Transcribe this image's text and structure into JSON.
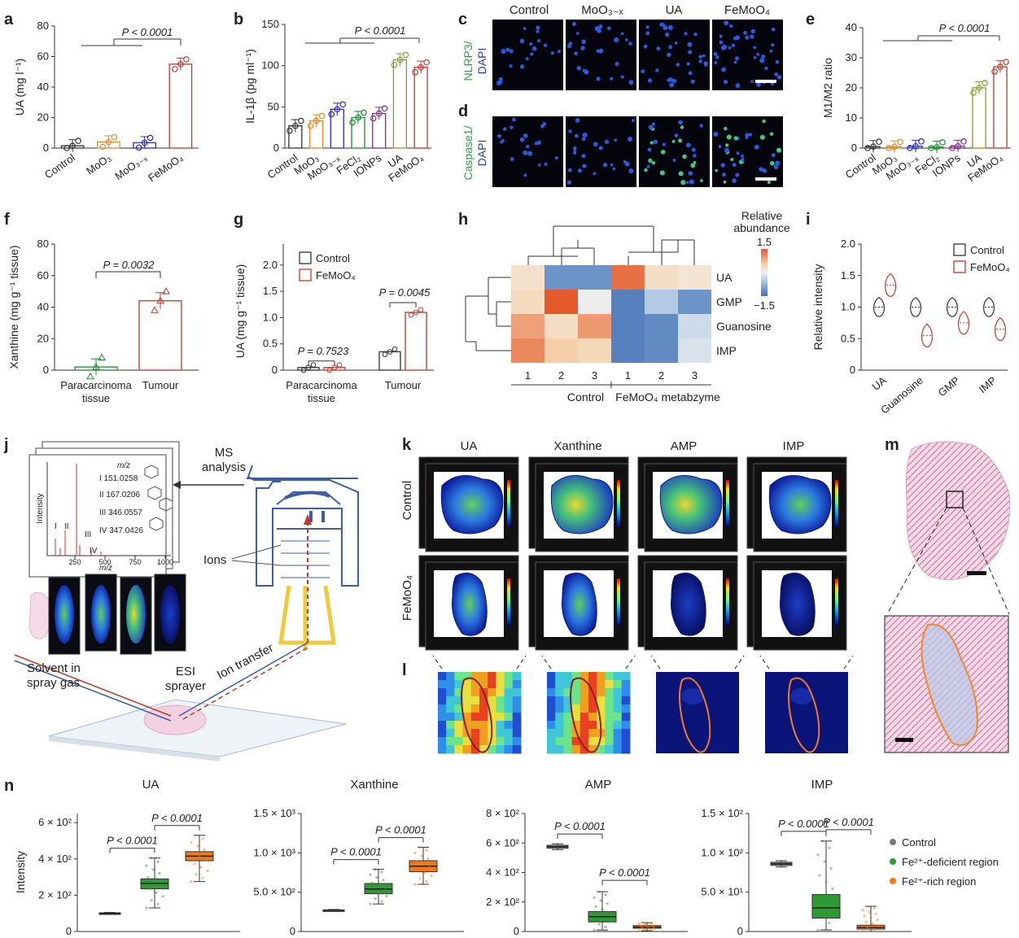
{
  "panels": {
    "a": {
      "letter": "a",
      "ylabel": "UA (mg l⁻¹)",
      "yticks": [
        "0",
        "20",
        "40",
        "60",
        "80"
      ],
      "ylim": [
        0,
        80
      ],
      "categories": [
        "Control",
        "MoO₃",
        "MoO₃₋ₓ",
        "FeMoO₄"
      ],
      "values": [
        1.5,
        4,
        3.5,
        55
      ],
      "colors": [
        "#333333",
        "#e08a2c",
        "#2b2bc9",
        "#c0392b"
      ],
      "sig": "P < 0.0001"
    },
    "b": {
      "letter": "b",
      "ylabel": "IL-1β (pg ml⁻¹)",
      "yticks": [
        "0",
        "50",
        "100",
        "150"
      ],
      "ylim": [
        0,
        150
      ],
      "categories": [
        "Control",
        "MoO₃",
        "MoO₃₋ₓ",
        "FeCl₂",
        "IONPs",
        "UA",
        "FeMoO₄"
      ],
      "values": [
        27,
        33,
        47,
        37,
        42,
        107,
        98
      ],
      "colors": [
        "#333333",
        "#e08a2c",
        "#2b2bc9",
        "#1e8c2e",
        "#7d2d8c",
        "#8a9b2a",
        "#c0392b"
      ],
      "sig": "P < 0.0001"
    },
    "c": {
      "letter": "c",
      "rowlabel_a": "NLRP3/",
      "rowlabel_b": "DAPI",
      "headers": [
        "Control",
        "MoO₃₋ₓ",
        "UA",
        "FeMoO₄"
      ]
    },
    "d": {
      "letter": "d",
      "rowlabel_a": "Caspase1/",
      "rowlabel_b": "DAPI"
    },
    "e": {
      "letter": "e",
      "ylabel": "M1/M2 ratio",
      "yticks": [
        "0",
        "10",
        "20",
        "30",
        "40"
      ],
      "ylim": [
        0,
        40
      ],
      "categories": [
        "Control",
        "MoO₃",
        "MoO₃₋ₓ",
        "FeCl₂",
        "IONPs",
        "UA",
        "FeMoO₄"
      ],
      "values": [
        0.5,
        0.4,
        0.6,
        0.3,
        0.6,
        20,
        27
      ],
      "colors": [
        "#333333",
        "#e08a2c",
        "#2b2bc9",
        "#1e8c2e",
        "#7d2d8c",
        "#8a9b2a",
        "#c0392b"
      ],
      "sig": "P < 0.0001"
    },
    "f": {
      "letter": "f",
      "ylabel": "Xanthine (mg g⁻¹ tissue)",
      "yticks": [
        "0",
        "20",
        "40",
        "60",
        "80"
      ],
      "ylim": [
        0,
        80
      ],
      "categories": [
        "Paracarcinoma tissue",
        "Tumour"
      ],
      "values": [
        2,
        44
      ],
      "colors": [
        "#1e8c2e",
        "#c0392b"
      ],
      "sig": "P = 0.0032"
    },
    "g": {
      "letter": "g",
      "ylabel": "UA (mg g⁻¹ tissue)",
      "yticks": [
        "0",
        "0.5",
        "1.0",
        "1.5",
        "2.0"
      ],
      "ylim": [
        0,
        2.4
      ],
      "groups": [
        "Paracarcinoma tissue",
        "Tumour"
      ],
      "series": [
        {
          "name": "Control",
          "values": [
            0.05,
            0.35
          ],
          "color": "#333333"
        },
        {
          "name": "FeMoO₄",
          "values": [
            0.05,
            1.1
          ],
          "color": "#c0392b"
        }
      ],
      "sig": [
        "P = 0.7523",
        "P = 0.0045"
      ]
    },
    "h": {
      "letter": "h",
      "rows": [
        "UA",
        "GMP",
        "Guanosine",
        "IMP"
      ],
      "cols": [
        "1",
        "2",
        "3",
        "1",
        "2",
        "3"
      ],
      "groups": [
        "Control",
        "FeMoO₄ metabzyme"
      ],
      "legend_title": "Relative abundance",
      "legend_max": "1.5",
      "legend_min": "−1.5",
      "values": [
        [
          0.25,
          -1.1,
          -1.1,
          1.3,
          0.3,
          0.2
        ],
        [
          0.35,
          1.5,
          -0.05,
          -1.3,
          -0.5,
          -1.1
        ],
        [
          0.9,
          0.3,
          0.95,
          -1.3,
          -1.2,
          -0.3
        ],
        [
          1.1,
          0.5,
          0.4,
          -1.3,
          -1.2,
          -0.2
        ]
      ]
    },
    "i": {
      "letter": "i",
      "ylabel": "Relative intensity",
      "yticks": [
        "0",
        "0.5",
        "1.0",
        "1.5",
        "2.0"
      ],
      "ylim": [
        0,
        2
      ],
      "categories": [
        "UA",
        "Guanosine",
        "GMP",
        "IMP"
      ],
      "series": [
        {
          "name": "Control",
          "center": [
            1.0,
            1.0,
            1.0,
            1.0
          ],
          "color": "#333333"
        },
        {
          "name": "FeMoO₄",
          "center": [
            1.35,
            0.55,
            0.75,
            0.65
          ],
          "color": "#c0392b"
        }
      ]
    },
    "j": {
      "letter": "j",
      "ms": "MS",
      "analysis": "analysis",
      "mz": "m/z",
      "intensity": "Intensity",
      "peaks": [
        "I  151.0258",
        "II  167.0206",
        "III  346.0557",
        "IV  347.0426"
      ],
      "xticks": [
        "250",
        "500",
        "750",
        "1000"
      ],
      "roman": [
        "I",
        "II",
        "III",
        "IV"
      ],
      "ions": "Ions",
      "ion_transfer": "Ion transfer",
      "esi": "ESI",
      "sprayer": "sprayer",
      "solvent": "Solvent in",
      "spray_gas": "spray gas"
    },
    "k": {
      "letter": "k",
      "cols": [
        "UA",
        "Xanthine",
        "AMP",
        "IMP"
      ],
      "rows": [
        "Control",
        "FeMoO₄"
      ]
    },
    "l": {
      "letter": "l"
    },
    "m": {
      "letter": "m"
    },
    "n": {
      "letter": "n",
      "ylabel": "Intensity",
      "legend": [
        "Control",
        "Fe²⁺-deficient region",
        "Fe²⁺-rich region"
      ],
      "colors": [
        "#777777",
        "#2e9a35",
        "#f07a1a"
      ],
      "plots": [
        {
          "title": "UA",
          "yticks": [
            "0",
            "2 × 10²",
            "4 × 10²",
            "6 × 10²"
          ],
          "ymax": 650,
          "tickvals": [
            0,
            200,
            400,
            600
          ],
          "medians": [
            100,
            265,
            415
          ],
          "q1": [
            97,
            235,
            390
          ],
          "q3": [
            103,
            290,
            440
          ],
          "min": [
            95,
            130,
            275
          ],
          "max": [
            105,
            405,
            530
          ],
          "sig": [
            "P < 0.0001",
            "P < 0.0001"
          ]
        },
        {
          "title": "Xanthine",
          "yticks": [
            "0",
            "5.0 × 10²",
            "1.0 × 10³",
            "1.5 × 10³"
          ],
          "ymax": 1500,
          "tickvals": [
            0,
            500,
            1000,
            1500
          ],
          "medians": [
            270,
            540,
            830
          ],
          "q1": [
            265,
            480,
            760
          ],
          "q3": [
            275,
            610,
            900
          ],
          "min": [
            260,
            350,
            600
          ],
          "max": [
            280,
            790,
            1070
          ],
          "sig": [
            "P < 0.0001",
            "P < 0.0001"
          ]
        },
        {
          "title": "AMP",
          "yticks": [
            "0",
            "2 × 10²",
            "4 × 10²",
            "6 × 10²",
            "8 × 10²"
          ],
          "ymax": 800,
          "tickvals": [
            0,
            200,
            400,
            600,
            800
          ],
          "medians": [
            575,
            100,
            30
          ],
          "q1": [
            565,
            65,
            22
          ],
          "q3": [
            585,
            135,
            40
          ],
          "min": [
            555,
            10,
            5
          ],
          "max": [
            595,
            270,
            60
          ],
          "sig": [
            "P < 0.0001",
            "P < 0.0001"
          ]
        },
        {
          "title": "IMP",
          "yticks": [
            "0",
            "5.0 × 10¹",
            "1.0 × 10²",
            "1.5 × 10²"
          ],
          "ymax": 150,
          "tickvals": [
            0,
            50,
            100,
            150
          ],
          "medians": [
            86,
            30,
            5
          ],
          "q1": [
            84,
            17,
            3
          ],
          "q3": [
            88,
            47,
            8
          ],
          "min": [
            82,
            2,
            0
          ],
          "max": [
            90,
            115,
            32
          ],
          "sig": [
            "P < 0.0001",
            "P < 0.0001"
          ]
        }
      ]
    }
  }
}
